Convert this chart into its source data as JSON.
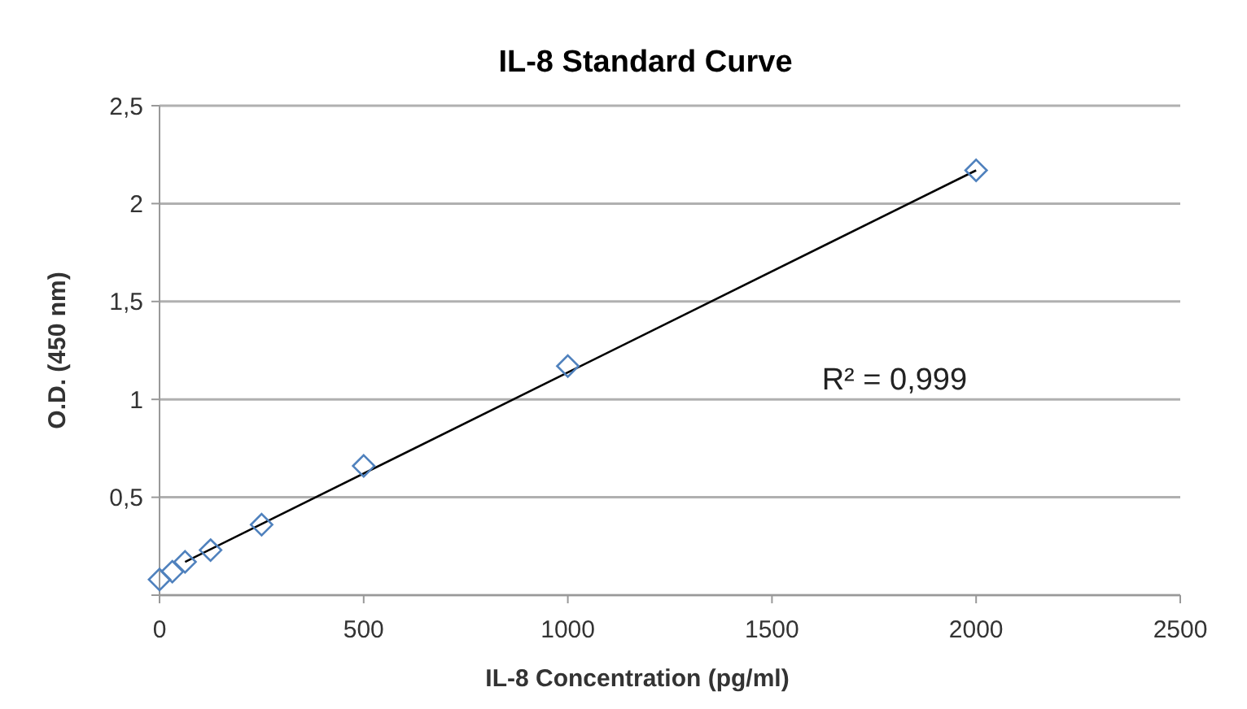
{
  "chart_data": {
    "type": "scatter",
    "title": "IL-8 Standard Curve",
    "xlabel": "IL-8 Concentration (pg/ml)",
    "ylabel": "O.D. (450 nm)",
    "xlim": [
      0,
      2500
    ],
    "xticks": [
      0,
      500,
      1000,
      1500,
      2000,
      2500
    ],
    "ylim": [
      0,
      2.5
    ],
    "yticks": [
      {
        "value": 0,
        "label": null
      },
      {
        "value": 0.5,
        "label": "0,5"
      },
      {
        "value": 1,
        "label": "1"
      },
      {
        "value": 1.5,
        "label": "1,5"
      },
      {
        "value": 2,
        "label": "2"
      },
      {
        "value": 2.5,
        "label": "2,5"
      }
    ],
    "grid": "y",
    "marker": "diamond",
    "series": [
      {
        "color": "#4f81bd",
        "x": [
          0,
          31.25,
          62.5,
          125,
          250,
          500,
          1000,
          2000
        ],
        "values": [
          0.08,
          0.12,
          0.17,
          0.23,
          0.36,
          0.66,
          1.17,
          2.17
        ]
      },
      {
        "type": "line",
        "marker": "none",
        "color": "#000000",
        "x": [
          62.5,
          2000
        ],
        "values": [
          0.17,
          2.17
        ]
      }
    ],
    "annotations": [
      "R² = 0,999"
    ]
  }
}
